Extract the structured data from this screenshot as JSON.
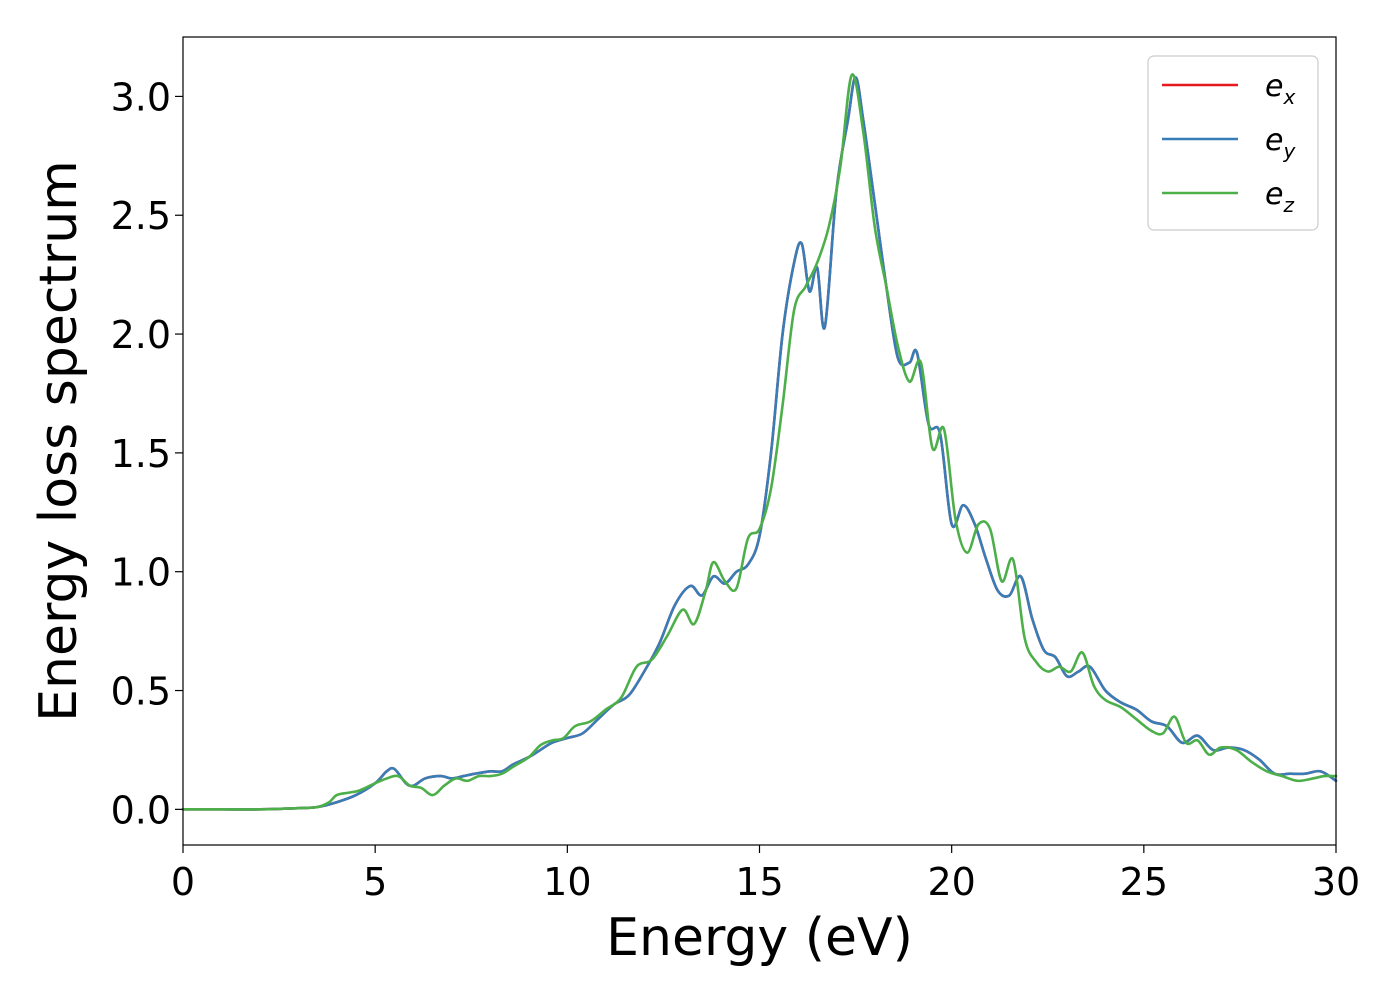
{
  "chart_data": {
    "type": "line",
    "xlabel": "Energy (eV)",
    "ylabel": "Energy loss spectrum",
    "xlim": [
      0,
      30
    ],
    "ylim": [
      -0.15,
      3.25
    ],
    "xticks": [
      0,
      5,
      10,
      15,
      20,
      25,
      30
    ],
    "xtick_labels": [
      "0",
      "5",
      "10",
      "15",
      "20",
      "25",
      "30"
    ],
    "yticks": [
      0.0,
      0.5,
      1.0,
      1.5,
      2.0,
      2.5,
      3.0
    ],
    "ytick_labels": [
      "0.0",
      "0.5",
      "1.0",
      "1.5",
      "2.0",
      "2.5",
      "3.0"
    ],
    "grid": false,
    "legend_position": "top-right",
    "series": [
      {
        "name": "e_x",
        "label_base": "e",
        "label_sub": "x",
        "color": "#e41a1c",
        "x": [
          0,
          1,
          2,
          3,
          3.5,
          4,
          4.5,
          5,
          5.3,
          5.5,
          5.8,
          6,
          6.3,
          6.7,
          7,
          7.3,
          7.6,
          8,
          8.3,
          8.6,
          9,
          9.3,
          9.6,
          10,
          10.4,
          10.8,
          11.2,
          11.6,
          12,
          12.4,
          12.8,
          13.2,
          13.5,
          13.8,
          14.1,
          14.4,
          14.7,
          15,
          15.3,
          15.6,
          15.9,
          16.1,
          16.3,
          16.5,
          16.7,
          17,
          17.3,
          17.5,
          17.7,
          18,
          18.3,
          18.6,
          18.9,
          19.1,
          19.4,
          19.7,
          20,
          20.3,
          20.6,
          20.9,
          21.2,
          21.5,
          21.8,
          22.1,
          22.4,
          22.7,
          23,
          23.3,
          23.6,
          24,
          24.4,
          24.8,
          25.2,
          25.6,
          26,
          26.4,
          26.8,
          27.2,
          27.6,
          28,
          28.4,
          28.8,
          29.2,
          29.6,
          30
        ],
        "y": [
          0.0,
          0.0,
          0.0,
          0.005,
          0.01,
          0.03,
          0.06,
          0.11,
          0.16,
          0.17,
          0.11,
          0.1,
          0.13,
          0.14,
          0.13,
          0.14,
          0.15,
          0.16,
          0.16,
          0.19,
          0.22,
          0.25,
          0.28,
          0.3,
          0.32,
          0.38,
          0.44,
          0.48,
          0.58,
          0.7,
          0.86,
          0.94,
          0.9,
          0.98,
          0.95,
          1.0,
          1.03,
          1.15,
          1.5,
          2.0,
          2.3,
          2.38,
          2.18,
          2.28,
          2.03,
          2.6,
          2.9,
          3.08,
          2.9,
          2.55,
          2.2,
          1.9,
          1.88,
          1.92,
          1.62,
          1.58,
          1.2,
          1.28,
          1.2,
          1.05,
          0.92,
          0.9,
          0.98,
          0.8,
          0.67,
          0.64,
          0.56,
          0.58,
          0.6,
          0.5,
          0.45,
          0.42,
          0.37,
          0.35,
          0.28,
          0.31,
          0.25,
          0.26,
          0.25,
          0.21,
          0.15,
          0.15,
          0.15,
          0.16,
          0.12
        ]
      },
      {
        "name": "e_y",
        "label_base": "e",
        "label_sub": "y",
        "color": "#377eb8",
        "x": [
          0,
          1,
          2,
          3,
          3.5,
          4,
          4.5,
          5,
          5.3,
          5.5,
          5.8,
          6,
          6.3,
          6.7,
          7,
          7.3,
          7.6,
          8,
          8.3,
          8.6,
          9,
          9.3,
          9.6,
          10,
          10.4,
          10.8,
          11.2,
          11.6,
          12,
          12.4,
          12.8,
          13.2,
          13.5,
          13.8,
          14.1,
          14.4,
          14.7,
          15,
          15.3,
          15.6,
          15.9,
          16.1,
          16.3,
          16.5,
          16.7,
          17,
          17.3,
          17.5,
          17.7,
          18,
          18.3,
          18.6,
          18.9,
          19.1,
          19.4,
          19.7,
          20,
          20.3,
          20.6,
          20.9,
          21.2,
          21.5,
          21.8,
          22.1,
          22.4,
          22.7,
          23,
          23.3,
          23.6,
          24,
          24.4,
          24.8,
          25.2,
          25.6,
          26,
          26.4,
          26.8,
          27.2,
          27.6,
          28,
          28.4,
          28.8,
          29.2,
          29.6,
          30
        ],
        "y": [
          0.0,
          0.0,
          0.0,
          0.005,
          0.01,
          0.03,
          0.06,
          0.11,
          0.16,
          0.17,
          0.11,
          0.1,
          0.13,
          0.14,
          0.13,
          0.14,
          0.15,
          0.16,
          0.16,
          0.19,
          0.22,
          0.25,
          0.28,
          0.3,
          0.32,
          0.38,
          0.44,
          0.48,
          0.58,
          0.7,
          0.86,
          0.94,
          0.9,
          0.98,
          0.95,
          1.0,
          1.03,
          1.15,
          1.5,
          2.0,
          2.3,
          2.38,
          2.18,
          2.28,
          2.03,
          2.6,
          2.9,
          3.08,
          2.9,
          2.55,
          2.2,
          1.9,
          1.88,
          1.92,
          1.62,
          1.58,
          1.2,
          1.28,
          1.2,
          1.05,
          0.92,
          0.9,
          0.98,
          0.8,
          0.67,
          0.64,
          0.56,
          0.58,
          0.6,
          0.5,
          0.45,
          0.42,
          0.37,
          0.35,
          0.28,
          0.31,
          0.25,
          0.26,
          0.25,
          0.21,
          0.15,
          0.15,
          0.15,
          0.16,
          0.12
        ]
      },
      {
        "name": "e_z",
        "label_base": "e",
        "label_sub": "z",
        "color": "#4daf4a",
        "x": [
          0,
          1,
          2,
          3,
          3.5,
          3.8,
          4,
          4.3,
          4.6,
          5,
          5.3,
          5.6,
          5.9,
          6.2,
          6.5,
          6.8,
          7.1,
          7.4,
          7.7,
          8,
          8.3,
          8.6,
          9,
          9.3,
          9.6,
          9.9,
          10.2,
          10.6,
          11,
          11.4,
          11.8,
          12.2,
          12.6,
          13,
          13.3,
          13.6,
          13.8,
          14.1,
          14.4,
          14.7,
          15,
          15.3,
          15.6,
          15.9,
          16.2,
          16.5,
          16.8,
          17.1,
          17.4,
          17.7,
          18,
          18.3,
          18.6,
          18.9,
          19.2,
          19.5,
          19.8,
          20.1,
          20.4,
          20.7,
          21,
          21.3,
          21.6,
          21.9,
          22.2,
          22.5,
          22.8,
          23.1,
          23.4,
          23.7,
          24,
          24.4,
          24.8,
          25.2,
          25.5,
          25.8,
          26.1,
          26.4,
          26.7,
          27,
          27.4,
          27.8,
          28.2,
          28.6,
          29,
          29.4,
          29.7,
          30
        ],
        "y": [
          0.0,
          0.0,
          0.0,
          0.005,
          0.01,
          0.03,
          0.06,
          0.07,
          0.08,
          0.11,
          0.13,
          0.14,
          0.1,
          0.09,
          0.06,
          0.1,
          0.13,
          0.12,
          0.14,
          0.14,
          0.15,
          0.18,
          0.22,
          0.27,
          0.29,
          0.3,
          0.35,
          0.37,
          0.42,
          0.47,
          0.6,
          0.63,
          0.73,
          0.84,
          0.78,
          0.92,
          1.04,
          0.96,
          0.93,
          1.14,
          1.18,
          1.35,
          1.7,
          2.1,
          2.2,
          2.3,
          2.45,
          2.7,
          3.09,
          2.85,
          2.45,
          2.2,
          1.95,
          1.8,
          1.88,
          1.52,
          1.6,
          1.22,
          1.08,
          1.2,
          1.18,
          0.96,
          1.05,
          0.72,
          0.62,
          0.58,
          0.6,
          0.58,
          0.66,
          0.52,
          0.46,
          0.43,
          0.38,
          0.33,
          0.32,
          0.39,
          0.28,
          0.29,
          0.23,
          0.26,
          0.25,
          0.2,
          0.16,
          0.14,
          0.12,
          0.13,
          0.14,
          0.14
        ]
      }
    ]
  }
}
